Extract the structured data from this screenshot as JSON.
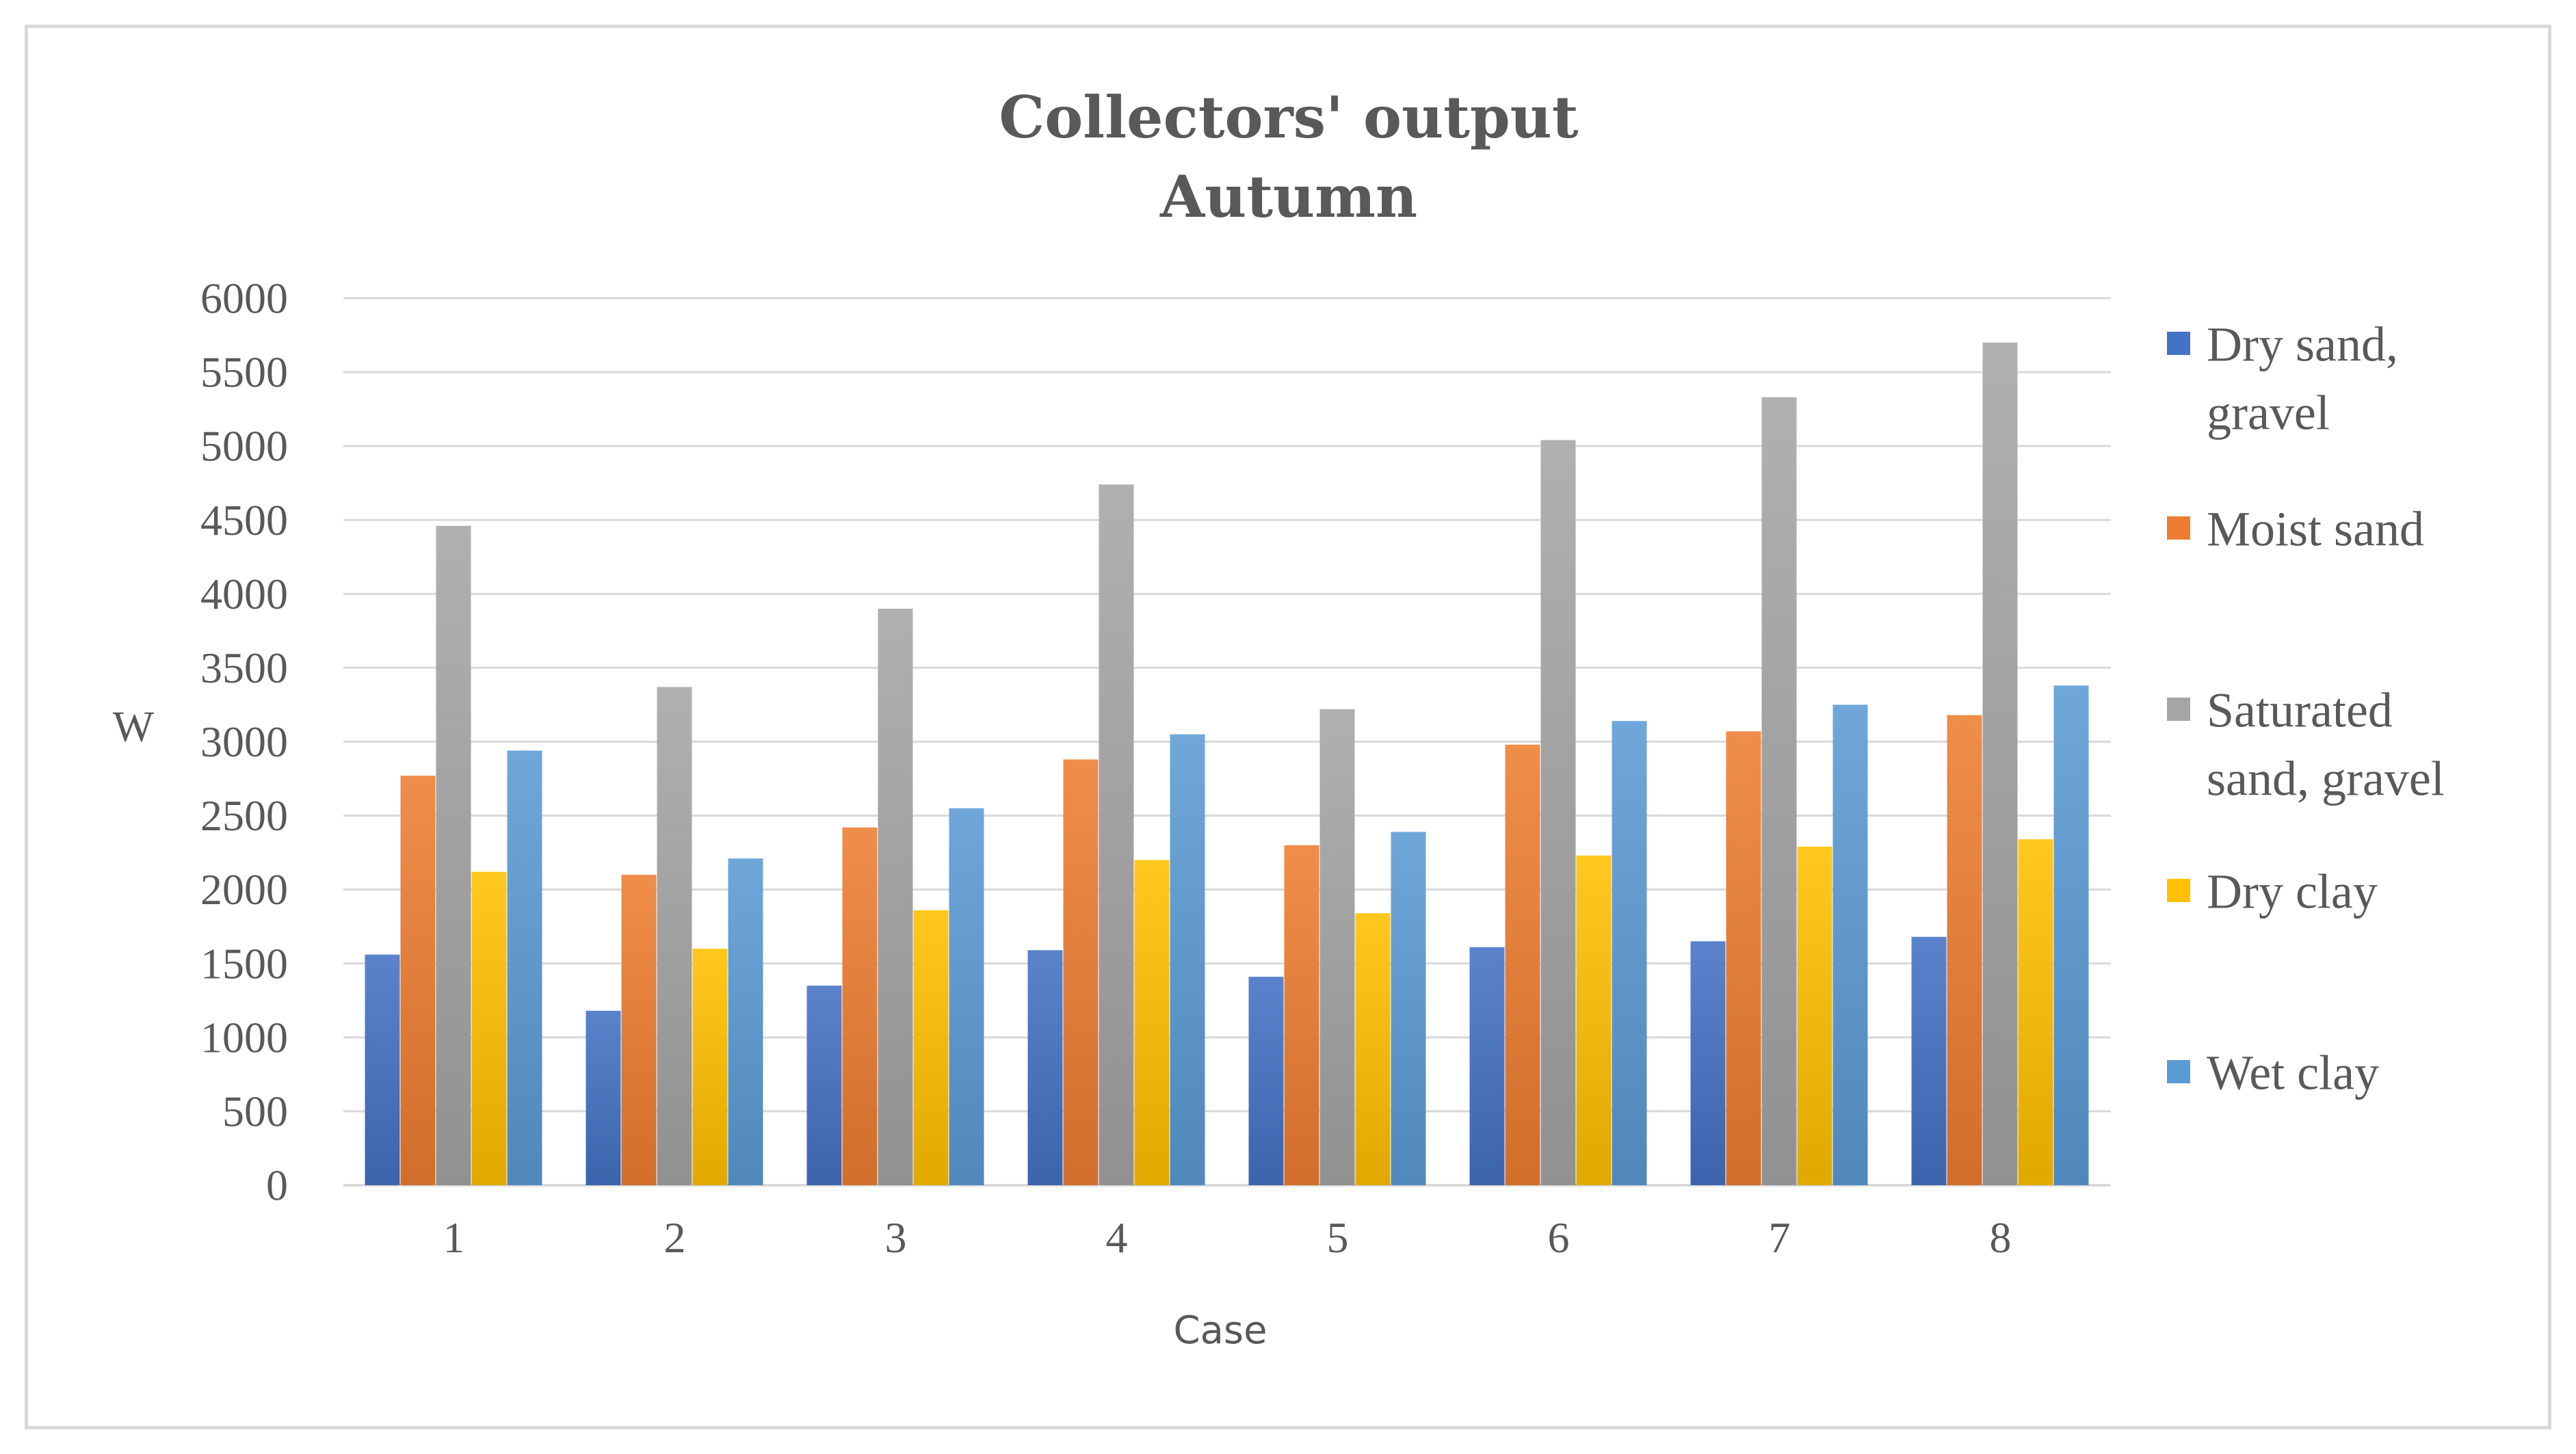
{
  "chart_data": {
    "type": "bar",
    "title": "Collectors' output",
    "subtitle": "Autumn",
    "xlabel": "Case",
    "ylabel": "W",
    "ylim": [
      0,
      6000
    ],
    "y_ticks": [
      0,
      500,
      1000,
      1500,
      2000,
      2500,
      3000,
      3500,
      4000,
      4500,
      5000,
      5500,
      6000
    ],
    "grid": "horizontal",
    "legend_position": "right",
    "categories": [
      "1",
      "2",
      "3",
      "4",
      "5",
      "6",
      "7",
      "8"
    ],
    "series": [
      {
        "name": "Dry sand, gravel",
        "legend_lines": [
          "Dry sand,",
          "gravel"
        ],
        "color": "#4472C4",
        "values": [
          1560,
          1180,
          1350,
          1590,
          1410,
          1610,
          1650,
          1680
        ]
      },
      {
        "name": "Moist sand",
        "legend_lines": [
          "Moist sand"
        ],
        "color": "#ED7D31",
        "values": [
          2770,
          2100,
          2420,
          2880,
          2300,
          2980,
          3070,
          3180
        ]
      },
      {
        "name": "Saturated sand, gravel",
        "legend_lines": [
          "Saturated",
          "sand, gravel"
        ],
        "color": "#A5A5A5",
        "values": [
          4460,
          3370,
          3900,
          4740,
          3220,
          5040,
          5330,
          5700
        ]
      },
      {
        "name": "Dry clay",
        "legend_lines": [
          "Dry clay"
        ],
        "color": "#FFC000",
        "values": [
          2120,
          1600,
          1860,
          2200,
          1840,
          2230,
          2290,
          2340
        ]
      },
      {
        "name": "Wet clay",
        "legend_lines": [
          "Wet clay"
        ],
        "color": "#5B9BD5",
        "values": [
          2940,
          2210,
          2550,
          3050,
          2390,
          3140,
          3250,
          3380
        ]
      }
    ]
  }
}
